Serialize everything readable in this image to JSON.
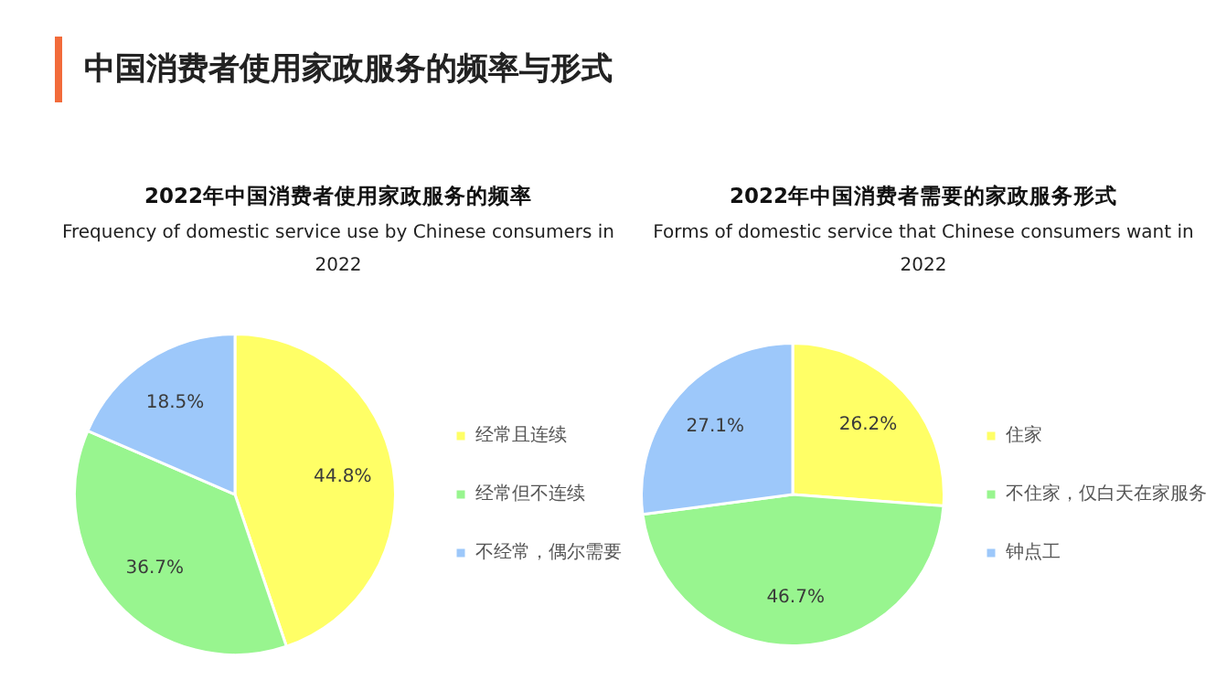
{
  "chart_data": [
    {
      "type": "pie",
      "title": "2022年中国消费者使用家政服务的频率",
      "subtitle": "Frequency of domestic service use by Chinese consumers in 2022",
      "annotations": [
        "中国消费者使用家政服务的频率与形式"
      ],
      "categories": [
        "经常且连续",
        "经常但不连续",
        "不经常，偶尔需要"
      ],
      "values": [
        44.8,
        36.7,
        18.5
      ],
      "value_labels": [
        "44.8%",
        "36.7%",
        "18.5%"
      ],
      "colors": [
        "#ffff66",
        "#98f58f",
        "#9dc8fa"
      ],
      "legend": "right"
    },
    {
      "type": "pie",
      "title": "2022年中国消费者需要的家政服务形式",
      "subtitle": "Forms of domestic service that Chinese consumers want in 2022",
      "categories": [
        "住家",
        "不住家，仅白天在家服务",
        "钟点工"
      ],
      "values": [
        26.2,
        46.7,
        27.1
      ],
      "value_labels": [
        "26.2%",
        "46.7%",
        "27.1%"
      ],
      "colors": [
        "#ffff66",
        "#98f58f",
        "#9dc8fa"
      ],
      "legend": "right"
    }
  ]
}
